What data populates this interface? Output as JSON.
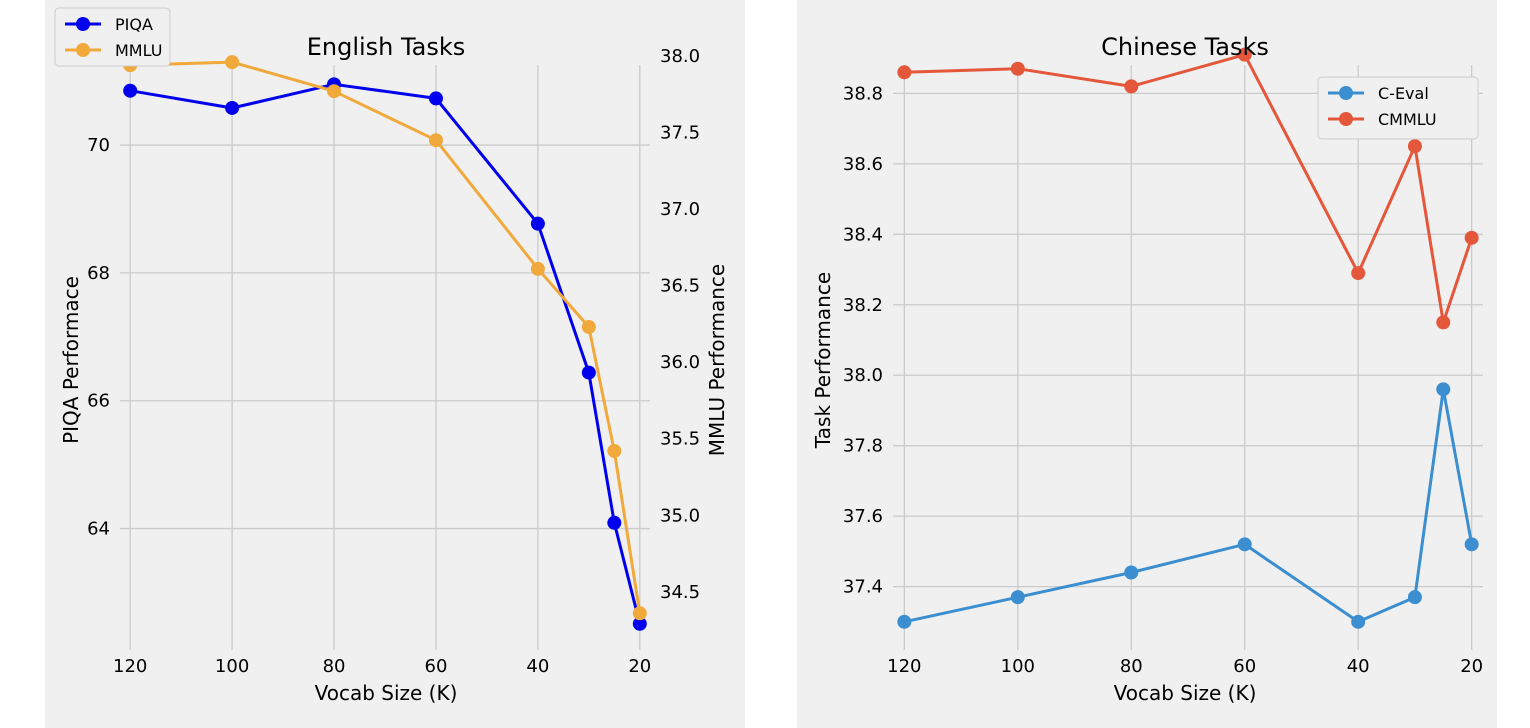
{
  "chart_data": [
    {
      "type": "line",
      "title": "English Tasks",
      "xlabel": "Vocab Size (K)",
      "ylabel": "PIQA Performace",
      "y2label": "MMLU Performance",
      "x_reversed": true,
      "xlim": [
        122,
        18
      ],
      "x_ticks": [
        120,
        100,
        80,
        60,
        40,
        20
      ],
      "x_tick_labels": [
        "120",
        "100",
        "80",
        "60",
        "40",
        "20"
      ],
      "ylim": [
        62.1,
        71.8
      ],
      "y_ticks": [
        64,
        66,
        68,
        70
      ],
      "y_tick_labels": [
        "64",
        "66",
        "68",
        "70"
      ],
      "y2lim": [
        34.12,
        38.17
      ],
      "y2_ticks": [
        34.5,
        35.0,
        35.5,
        36.0,
        36.5,
        37.0,
        37.5,
        38.0
      ],
      "y2_tick_labels": [
        "34.5",
        "35.0",
        "35.5",
        "36.0",
        "36.5",
        "37.0",
        "37.5",
        "38.0"
      ],
      "grid": true,
      "legend_position": "upper-left",
      "series": [
        {
          "name": "PIQA",
          "axis": "left",
          "color": "#0000ee",
          "x": [
            120,
            100,
            80,
            60,
            40,
            30,
            25,
            20
          ],
          "values": [
            70.85,
            70.58,
            70.95,
            70.73,
            68.77,
            66.44,
            64.09,
            62.51
          ]
        },
        {
          "name": "MMLU",
          "axis": "right",
          "color": "#f2a93b",
          "x": [
            120,
            100,
            80,
            60,
            40,
            30,
            25,
            20
          ],
          "values": [
            37.94,
            37.96,
            37.77,
            37.45,
            36.61,
            36.23,
            35.42,
            34.36
          ]
        }
      ]
    },
    {
      "type": "line",
      "title": "Chinese Tasks",
      "xlabel": "Vocab Size (K)",
      "ylabel": "Task Performance",
      "x_reversed": true,
      "xlim": [
        122,
        18
      ],
      "x_ticks": [
        120,
        100,
        80,
        60,
        40,
        20
      ],
      "x_tick_labels": [
        "120",
        "100",
        "80",
        "60",
        "40",
        "20"
      ],
      "ylim": [
        37.22,
        38.98
      ],
      "y_ticks": [
        37.4,
        37.6,
        37.8,
        38.0,
        38.2,
        38.4,
        38.6,
        38.8
      ],
      "y_tick_labels": [
        "37.4",
        "37.6",
        "37.8",
        "38.0",
        "38.2",
        "38.4",
        "38.6",
        "38.8"
      ],
      "grid": true,
      "legend_position": "upper-right",
      "series": [
        {
          "name": "C-Eval",
          "color": "#3b8ed0",
          "x": [
            120,
            100,
            80,
            60,
            40,
            30,
            25,
            20
          ],
          "values": [
            37.3,
            37.37,
            37.44,
            37.52,
            37.3,
            37.37,
            37.96,
            37.52
          ]
        },
        {
          "name": "CMMLU",
          "color": "#e5573a",
          "x": [
            120,
            100,
            80,
            60,
            40,
            30,
            25,
            20
          ],
          "values": [
            38.86,
            38.87,
            38.82,
            38.91,
            38.29,
            38.65,
            38.15,
            38.39
          ]
        }
      ]
    }
  ]
}
